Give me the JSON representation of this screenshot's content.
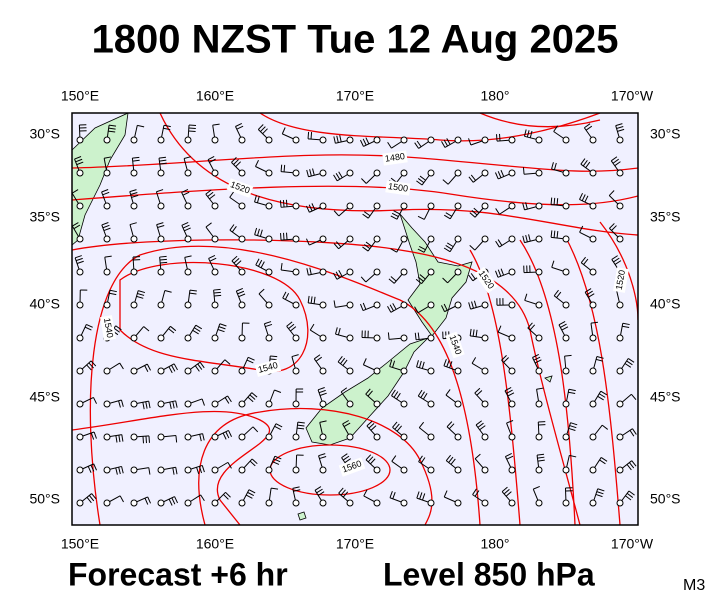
{
  "title": "1800 NZST Tue 12 Aug 2025",
  "map": {
    "lon_labels": [
      "150°E",
      "160°E",
      "170°E",
      "180°",
      "170°W"
    ],
    "lat_labels": [
      "30°S",
      "35°S",
      "40°S",
      "45°S",
      "50°S"
    ],
    "contour_labels": [
      "1480",
      "1500",
      "1520",
      "1520",
      "1520",
      "1540",
      "1540",
      "1540",
      "1560"
    ]
  },
  "footer": {
    "forecast": "Forecast +6 hr",
    "level": "Level 850 hPa",
    "code": "M3"
  }
}
